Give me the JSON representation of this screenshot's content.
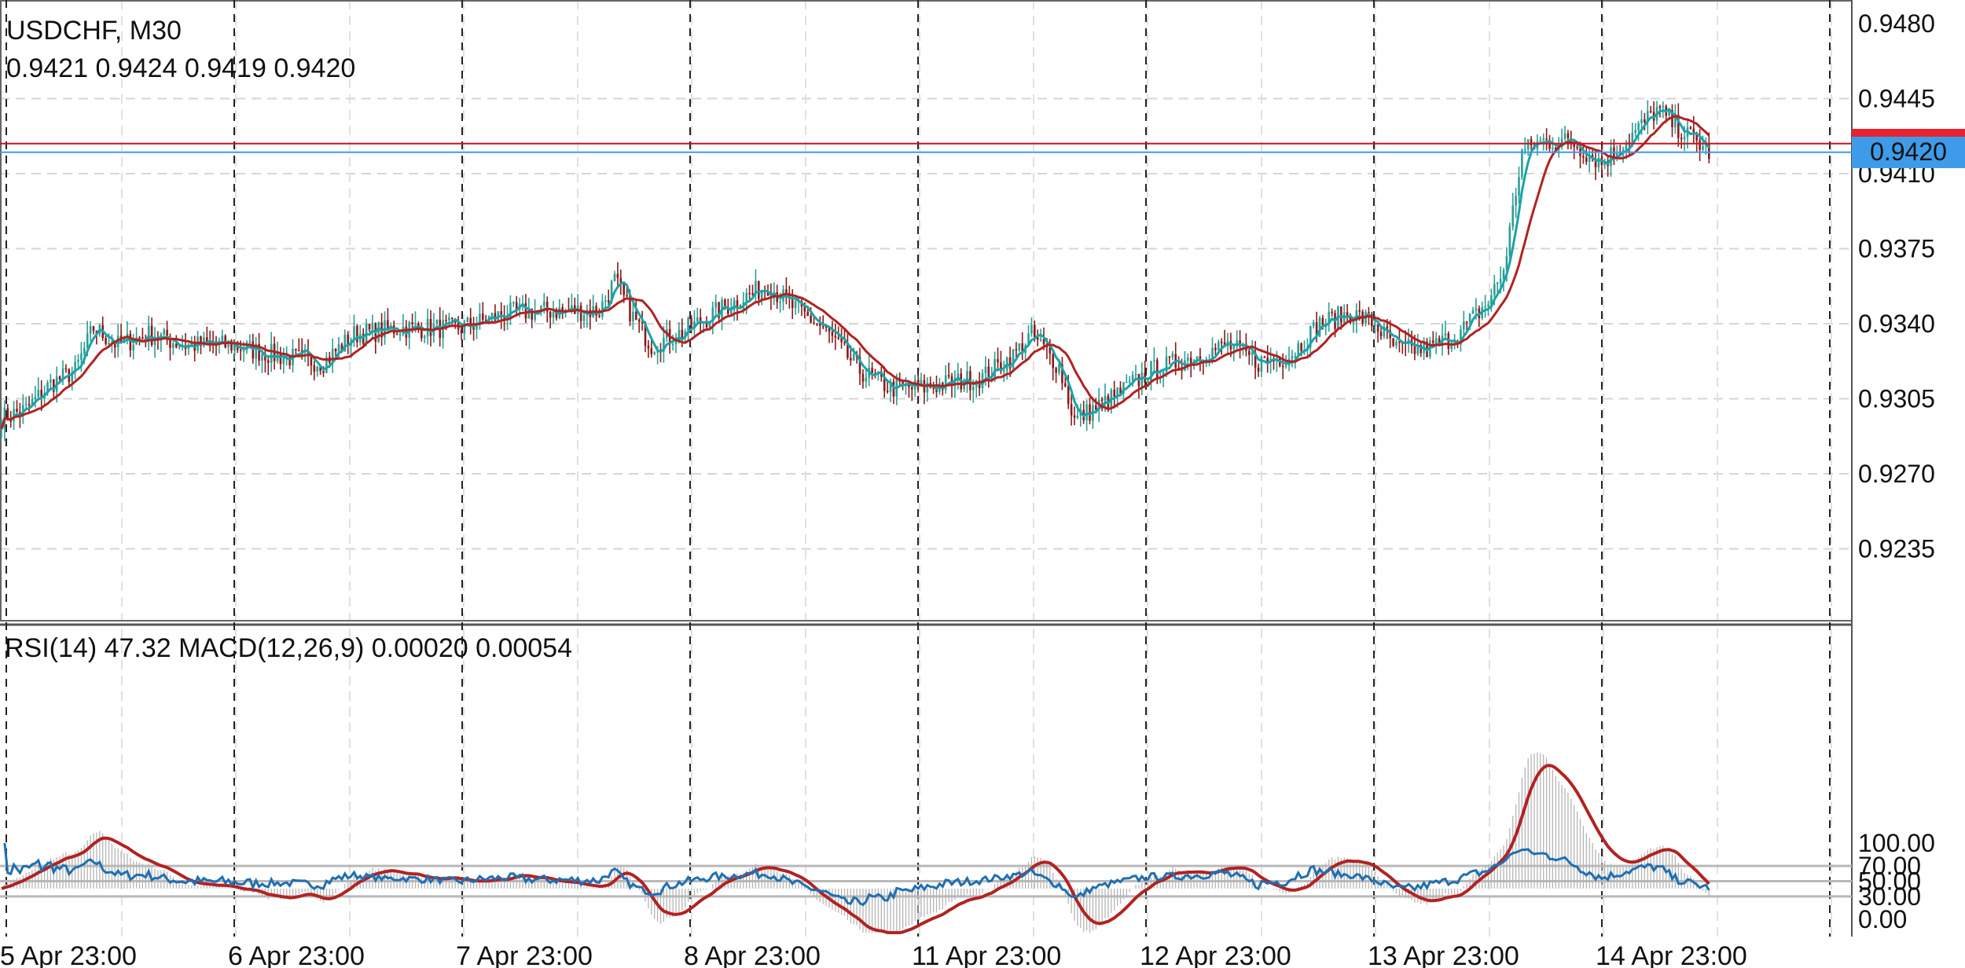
{
  "header": {
    "symbol": "USDCHF, M30",
    "ohlc": "0.9421 0.9424 0.9419 0.9420"
  },
  "current_price": {
    "label": "0.9420",
    "color": "#3d9be9"
  },
  "indicator_header": "RSI(14) 47.32 MACD(12,26,9) 0.00020 0.00054",
  "colors": {
    "candle": "#26a69a",
    "fast_ma": "#1ca3a8",
    "slow_ma": "#b22222",
    "rsi": "#1f6fb2",
    "macd_signal": "#b22222",
    "macd_hist": "#b5b5b5",
    "bid_line": "#cc1122",
    "ask_line": "#3d9be9"
  },
  "chart_data": [
    {
      "type": "candlestick",
      "title": "USDCHF, M30",
      "y_ticks": [
        "0.9480",
        "0.9445",
        "0.9410",
        "0.9375",
        "0.9340",
        "0.9305",
        "0.9270",
        "0.9235"
      ],
      "ylim": [
        0.92,
        0.9485
      ],
      "x_ticks": [
        "5 Apr 23:00",
        "6 Apr 23:00",
        "7 Apr 23:00",
        "8 Apr 23:00",
        "11 Apr 23:00",
        "12 Apr 23:00",
        "13 Apr 23:00",
        "14 Apr 23:00"
      ],
      "grid": true,
      "close_anchors": [
        [
          0,
          0.9296
        ],
        [
          8,
          0.93
        ],
        [
          16,
          0.9312
        ],
        [
          24,
          0.9318
        ],
        [
          30,
          0.9338
        ],
        [
          38,
          0.933
        ],
        [
          48,
          0.9335
        ],
        [
          60,
          0.933
        ],
        [
          75,
          0.933
        ],
        [
          90,
          0.9325
        ],
        [
          105,
          0.9322
        ],
        [
          115,
          0.9335
        ],
        [
          130,
          0.9338
        ],
        [
          150,
          0.9338
        ],
        [
          165,
          0.9345
        ],
        [
          180,
          0.9346
        ],
        [
          195,
          0.9346
        ],
        [
          200,
          0.936
        ],
        [
          206,
          0.9343
        ],
        [
          212,
          0.933
        ],
        [
          222,
          0.9336
        ],
        [
          235,
          0.9347
        ],
        [
          250,
          0.9358
        ],
        [
          258,
          0.9348
        ],
        [
          268,
          0.9338
        ],
        [
          280,
          0.9318
        ],
        [
          290,
          0.931
        ],
        [
          300,
          0.931
        ],
        [
          320,
          0.9315
        ],
        [
          330,
          0.9325
        ],
        [
          336,
          0.9335
        ],
        [
          345,
          0.932
        ],
        [
          350,
          0.9295
        ],
        [
          362,
          0.9305
        ],
        [
          375,
          0.9318
        ],
        [
          390,
          0.9325
        ],
        [
          400,
          0.933
        ],
        [
          410,
          0.9322
        ],
        [
          420,
          0.9325
        ],
        [
          430,
          0.934
        ],
        [
          440,
          0.9345
        ],
        [
          448,
          0.934
        ],
        [
          455,
          0.9328
        ],
        [
          465,
          0.9328
        ],
        [
          475,
          0.9335
        ],
        [
          485,
          0.935
        ],
        [
          490,
          0.9365
        ],
        [
          496,
          0.942
        ],
        [
          502,
          0.9425
        ],
        [
          512,
          0.9425
        ],
        [
          522,
          0.9415
        ],
        [
          532,
          0.9428
        ],
        [
          540,
          0.944
        ],
        [
          548,
          0.943
        ],
        [
          553,
          0.9425
        ],
        [
          557,
          0.942
        ]
      ],
      "series": [
        {
          "name": "",
          "type": "moving_average",
          "period": 5,
          "color": "#1ca3a8"
        },
        {
          "name": "",
          "type": "moving_average",
          "period": 14,
          "color": "#b22222"
        }
      ],
      "horizontal_lines": [
        0.9424,
        0.942
      ]
    },
    {
      "type": "line",
      "title": "RSI(14) 47.32 MACD(12,26,9) 0.00020 0.00054",
      "y_ticks": [
        "100.00",
        "70.00",
        "50.00",
        "30.00",
        "0.00"
      ],
      "ylim": [
        0,
        100
      ],
      "levels": [
        70,
        50,
        30
      ],
      "x_ticks": [
        "5 Apr 23:00",
        "6 Apr 23:00",
        "7 Apr 23:00",
        "8 Apr 23:00",
        "11 Apr 23:00",
        "12 Apr 23:00",
        "13 Apr 23:00",
        "14 Apr 23:00"
      ],
      "series": [
        {
          "name": "RSI(14)",
          "last": 47.32
        },
        {
          "name": "MACD(12,26,9)",
          "values_shown": [
            0.0002,
            0.00054
          ]
        }
      ]
    }
  ]
}
